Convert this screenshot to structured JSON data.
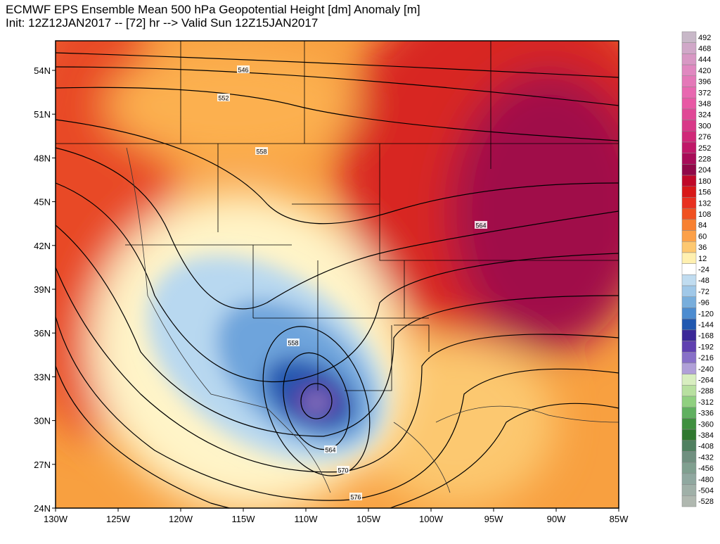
{
  "header": {
    "title": "ECMWF EPS Ensemble Mean 500 hPa Geopotential Height [dm] Anomaly [m]",
    "subtitle": "Init: 12Z12JAN2017 -- [72] hr --> Valid Sun 12Z15JAN2017"
  },
  "map": {
    "lat_labels": [
      "54N",
      "51N",
      "48N",
      "45N",
      "42N",
      "39N",
      "36N",
      "33N",
      "30N",
      "27N",
      "24N"
    ],
    "lon_labels": [
      "130W",
      "125W",
      "120W",
      "115W",
      "110W",
      "105W",
      "100W",
      "95W",
      "90W",
      "85W"
    ],
    "contour_labels": [
      546,
      552,
      558,
      564,
      558,
      564,
      570,
      576
    ]
  },
  "colorbar": {
    "labels": [
      492,
      468,
      444,
      420,
      396,
      372,
      348,
      324,
      300,
      276,
      252,
      228,
      204,
      180,
      156,
      132,
      108,
      84,
      60,
      36,
      12,
      -24,
      -48,
      -72,
      -96,
      -120,
      -144,
      -168,
      -192,
      -216,
      -240,
      -264,
      -288,
      -312,
      -336,
      -360,
      -384,
      -408,
      -432,
      -456,
      -480,
      -504,
      -528
    ],
    "colors": [
      "#c8b8c8",
      "#d0a8c8",
      "#d898c4",
      "#e088c0",
      "#e478b8",
      "#e868b0",
      "#e858a4",
      "#e04896",
      "#d83888",
      "#d02878",
      "#c01868",
      "#a80c58",
      "#900848",
      "#c00828",
      "#d81818",
      "#e83020",
      "#f05020",
      "#f88030",
      "#fca048",
      "#fdc870",
      "#fff0b0",
      "#ffffff",
      "#c0dcf0",
      "#a0c8e8",
      "#78aedc",
      "#4c8cd0",
      "#2058b0",
      "#3a2898",
      "#6040b0",
      "#8870c8",
      "#b0a0d8",
      "#d8eec0",
      "#b8e0a0",
      "#90d080",
      "#60b060",
      "#409040",
      "#307830",
      "#508060",
      "#709080",
      "#80a090",
      "#90a8a0",
      "#a0b0a8",
      "#b0b8b0"
    ]
  }
}
